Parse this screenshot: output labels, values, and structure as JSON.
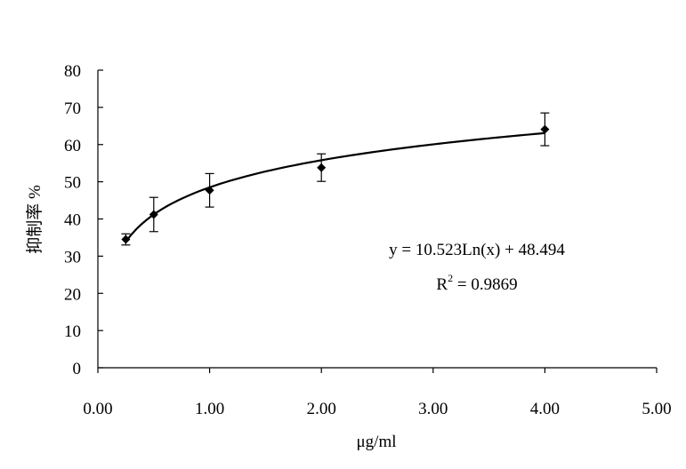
{
  "chart_data": {
    "type": "scatter",
    "title": "",
    "xlabel": "μg/ml",
    "ylabel": "抑制率 %",
    "xlim": [
      0,
      5
    ],
    "ylim": [
      0,
      80
    ],
    "x_ticks": [
      "0.00",
      "1.00",
      "2.00",
      "3.00",
      "4.00",
      "5.00"
    ],
    "y_ticks": [
      "0",
      "10",
      "20",
      "30",
      "40",
      "50",
      "60",
      "70",
      "80"
    ],
    "grid": false,
    "legend": "none",
    "series": [
      {
        "points": [
          {
            "x": 0.25,
            "y": 34.5,
            "err": 1.5
          },
          {
            "x": 0.5,
            "y": 41.2,
            "err": 4.6
          },
          {
            "x": 1.0,
            "y": 47.7,
            "err": 4.5
          },
          {
            "x": 2.0,
            "y": 53.8,
            "err": 3.7
          },
          {
            "x": 4.0,
            "y": 64.1,
            "err": 4.4
          }
        ]
      }
    ],
    "trendline": {
      "type": "logarithmic",
      "a": 10.523,
      "b": 48.494,
      "x_range": [
        0.25,
        4.0
      ],
      "equation": "y = 10.523Ln(x) + 48.494",
      "r2_prefix": "R",
      "r2_exp": "2",
      "r2_value": " = 0.9869"
    },
    "colors": {
      "axis": "#000000",
      "marker": "#000000",
      "line": "#000000"
    }
  }
}
